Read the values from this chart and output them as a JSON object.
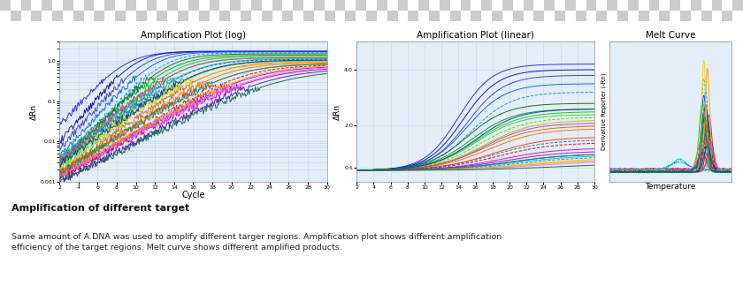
{
  "title1": "Amplification Plot (log)",
  "title2": "Amplification Plot (linear)",
  "title3": "Melt Curve",
  "xlabel1": "Cycle",
  "ylabel1": "ΔRn",
  "ylabel2": "ΔRn",
  "ylabel3": "Derivative Reporter (-Rn)",
  "xlabel3": "Temperature",
  "plot_bg": "#e4eef8",
  "grid_color": "#b8cfe8",
  "caption_title": "Amplification of different target",
  "caption_body": "Same amount of A.DNA was used to amplify different targer regions. Amplification plot shows different amplification\nefficiency of the target regions. Melt curve shows different amplified products.",
  "caption_bg": "#d4d4d4",
  "white_bg": "#ffffff",
  "checker_light": "#ffffff",
  "checker_dark": "#cccccc",
  "line_colors_log": [
    "#1a1aff",
    "#0000aa",
    "#3333cc",
    "#0055ff",
    "#0088ff",
    "#006600",
    "#009900",
    "#00cc00",
    "#33cc33",
    "#66cc00",
    "#99cc00",
    "#cc6600",
    "#ff6600",
    "#ff3300",
    "#cc0000",
    "#cc00cc",
    "#9900cc",
    "#6600cc",
    "#00cccc",
    "#0099cc",
    "#ffcc00",
    "#ff9900",
    "#ff66cc",
    "#cc3399",
    "#336699",
    "#003399",
    "#009966",
    "#006633"
  ],
  "line_colors_melt": [
    "#1a1aff",
    "#0000aa",
    "#3333cc",
    "#0055ff",
    "#0088ff",
    "#006600",
    "#009900",
    "#00cc00",
    "#33cc33",
    "#66cc00",
    "#99cc00",
    "#cc6600",
    "#ff6600",
    "#ff3300",
    "#cc0000",
    "#cc00cc",
    "#9900cc",
    "#6600cc",
    "#00cccc",
    "#0099cc",
    "#ffcc00",
    "#ff9900",
    "#ff66cc",
    "#cc3399",
    "#336699",
    "#003399",
    "#009966",
    "#006633"
  ]
}
